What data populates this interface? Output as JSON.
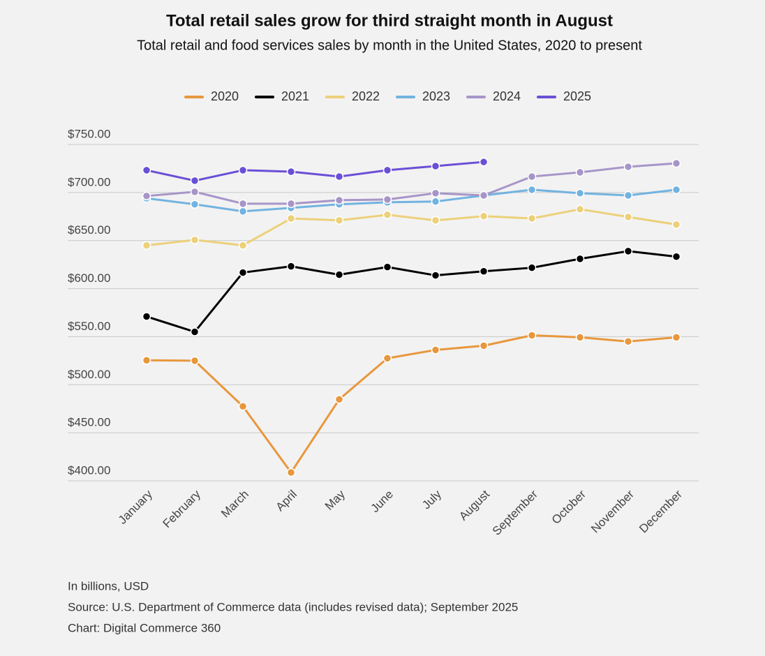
{
  "chart_data": {
    "type": "line",
    "title": "Total retail sales grow for third straight month in August",
    "subtitle": "Total retail and food services sales by month in the United States, 2020 to present",
    "categories": [
      "January",
      "February",
      "March",
      "April",
      "May",
      "June",
      "July",
      "August",
      "September",
      "October",
      "November",
      "December"
    ],
    "series": [
      {
        "name": "2020",
        "color": "#e8973c",
        "values": [
          525.4,
          525,
          477.5,
          408.7,
          484.8,
          527.5,
          536.2,
          540.6,
          551.4,
          549.3,
          545,
          549.3
        ]
      },
      {
        "name": "2021",
        "color": "#000000",
        "values": [
          571,
          555,
          616.7,
          623.2,
          614.5,
          622.5,
          613.8,
          618,
          621.7,
          631,
          639,
          633.3
        ]
      },
      {
        "name": "2022",
        "color": "#ecd07a",
        "values": [
          645,
          650.7,
          645,
          673,
          671,
          676.8,
          671,
          675.4,
          673,
          682.6,
          674.6,
          666.7
        ]
      },
      {
        "name": "2023",
        "color": "#72b3e0",
        "values": [
          694,
          687.7,
          680.4,
          684,
          687.7,
          689.8,
          690.6,
          697,
          702.9,
          699.3,
          697,
          702.9
        ]
      },
      {
        "name": "2024",
        "color": "#a795c8",
        "values": [
          696.4,
          700.7,
          688.4,
          688.4,
          692,
          692.7,
          699.3,
          697,
          716.6,
          721,
          726.8,
          730.4
        ]
      },
      {
        "name": "2025",
        "color": "#6a4fd6",
        "values": [
          723.2,
          712.3,
          723.2,
          721.7,
          716.6,
          723.2,
          727.5,
          731.8,
          null,
          null,
          null,
          null
        ]
      }
    ],
    "ylim": [
      400,
      750
    ],
    "yticks": [
      {
        "value": 400,
        "label": "$400.00"
      },
      {
        "value": 450,
        "label": "$450.00"
      },
      {
        "value": 500,
        "label": "$500.00"
      },
      {
        "value": 550,
        "label": "$550.00"
      },
      {
        "value": 600,
        "label": "$600.00"
      },
      {
        "value": 650,
        "label": "$650.00"
      },
      {
        "value": 700,
        "label": "$700.00"
      },
      {
        "value": 750,
        "label": "$750.00"
      }
    ],
    "grid": true,
    "legend": "top",
    "notes": [
      "In billions, USD",
      "Source: U.S. Department of Commerce data (includes revised data); September 2025",
      "Chart: Digital Commerce 360"
    ]
  }
}
